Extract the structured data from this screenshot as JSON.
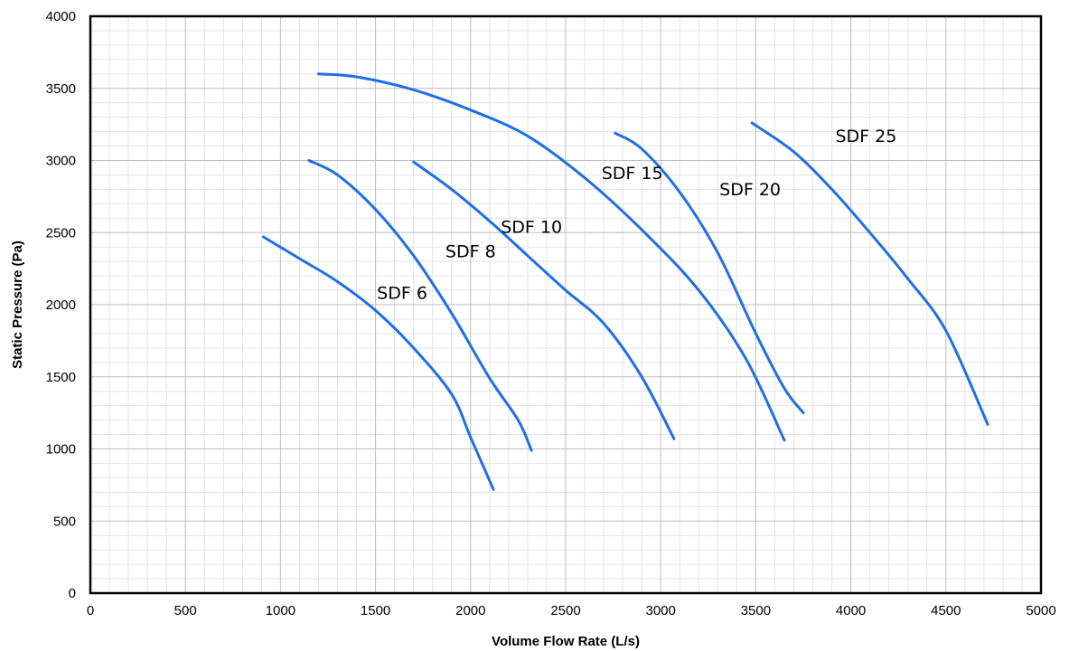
{
  "chart_data": {
    "type": "line",
    "title": "",
    "xlabel": "Volume Flow Rate (L/s)",
    "ylabel": "Static Pressure (Pa)",
    "xlim": [
      0,
      5000
    ],
    "ylim": [
      0,
      4000
    ],
    "x_ticks": [
      0,
      500,
      1000,
      1500,
      2000,
      2500,
      3000,
      3500,
      4000,
      4500,
      5000
    ],
    "y_ticks": [
      0,
      500,
      1000,
      1500,
      2000,
      2500,
      3000,
      3500,
      4000
    ],
    "x_tick_labels": [
      "0",
      "500",
      "1000",
      "1500",
      "2000",
      "2500",
      "3000",
      "3500",
      "4000",
      "4500",
      "5000"
    ],
    "y_tick_labels": [
      "0",
      "500",
      "1000",
      "1500",
      "2000",
      "2500",
      "3000",
      "3500",
      "4000"
    ],
    "grid": true,
    "minor_grid": true,
    "legend": "none",
    "line_color": "#1f6fe5",
    "series": [
      {
        "name": "SDF 6",
        "label_at": [
          1640,
          2040
        ],
        "points": [
          [
            910,
            2470
          ],
          [
            1100,
            2320
          ],
          [
            1300,
            2160
          ],
          [
            1500,
            1960
          ],
          [
            1700,
            1700
          ],
          [
            1900,
            1380
          ],
          [
            2000,
            1080
          ],
          [
            2120,
            720
          ]
        ]
      },
      {
        "name": "SDF 8",
        "label_at": [
          2000,
          2330
        ],
        "points": [
          [
            1150,
            3000
          ],
          [
            1300,
            2900
          ],
          [
            1500,
            2660
          ],
          [
            1700,
            2340
          ],
          [
            1900,
            1940
          ],
          [
            2100,
            1490
          ],
          [
            2250,
            1200
          ],
          [
            2320,
            990
          ]
        ]
      },
      {
        "name": "SDF 10",
        "label_at": [
          2320,
          2500
        ],
        "points": [
          [
            1700,
            2990
          ],
          [
            1900,
            2800
          ],
          [
            2100,
            2580
          ],
          [
            2300,
            2340
          ],
          [
            2500,
            2100
          ],
          [
            2700,
            1870
          ],
          [
            2900,
            1500
          ],
          [
            3070,
            1070
          ]
        ]
      },
      {
        "name": "SDF 15",
        "label_at": [
          2850,
          2870
        ],
        "points": [
          [
            1200,
            3600
          ],
          [
            1400,
            3580
          ],
          [
            1700,
            3490
          ],
          [
            2000,
            3350
          ],
          [
            2300,
            3170
          ],
          [
            2600,
            2880
          ],
          [
            2900,
            2520
          ],
          [
            3200,
            2100
          ],
          [
            3450,
            1620
          ],
          [
            3650,
            1060
          ]
        ]
      },
      {
        "name": "SDF 20",
        "label_at": [
          3470,
          2760
        ],
        "points": [
          [
            2760,
            3190
          ],
          [
            2900,
            3080
          ],
          [
            3100,
            2780
          ],
          [
            3300,
            2360
          ],
          [
            3500,
            1800
          ],
          [
            3650,
            1420
          ],
          [
            3750,
            1250
          ]
        ]
      },
      {
        "name": "SDF 25",
        "label_at": [
          4080,
          3130
        ],
        "points": [
          [
            3480,
            3260
          ],
          [
            3700,
            3060
          ],
          [
            3900,
            2800
          ],
          [
            4100,
            2500
          ],
          [
            4300,
            2180
          ],
          [
            4500,
            1820
          ],
          [
            4720,
            1170
          ]
        ]
      }
    ]
  }
}
